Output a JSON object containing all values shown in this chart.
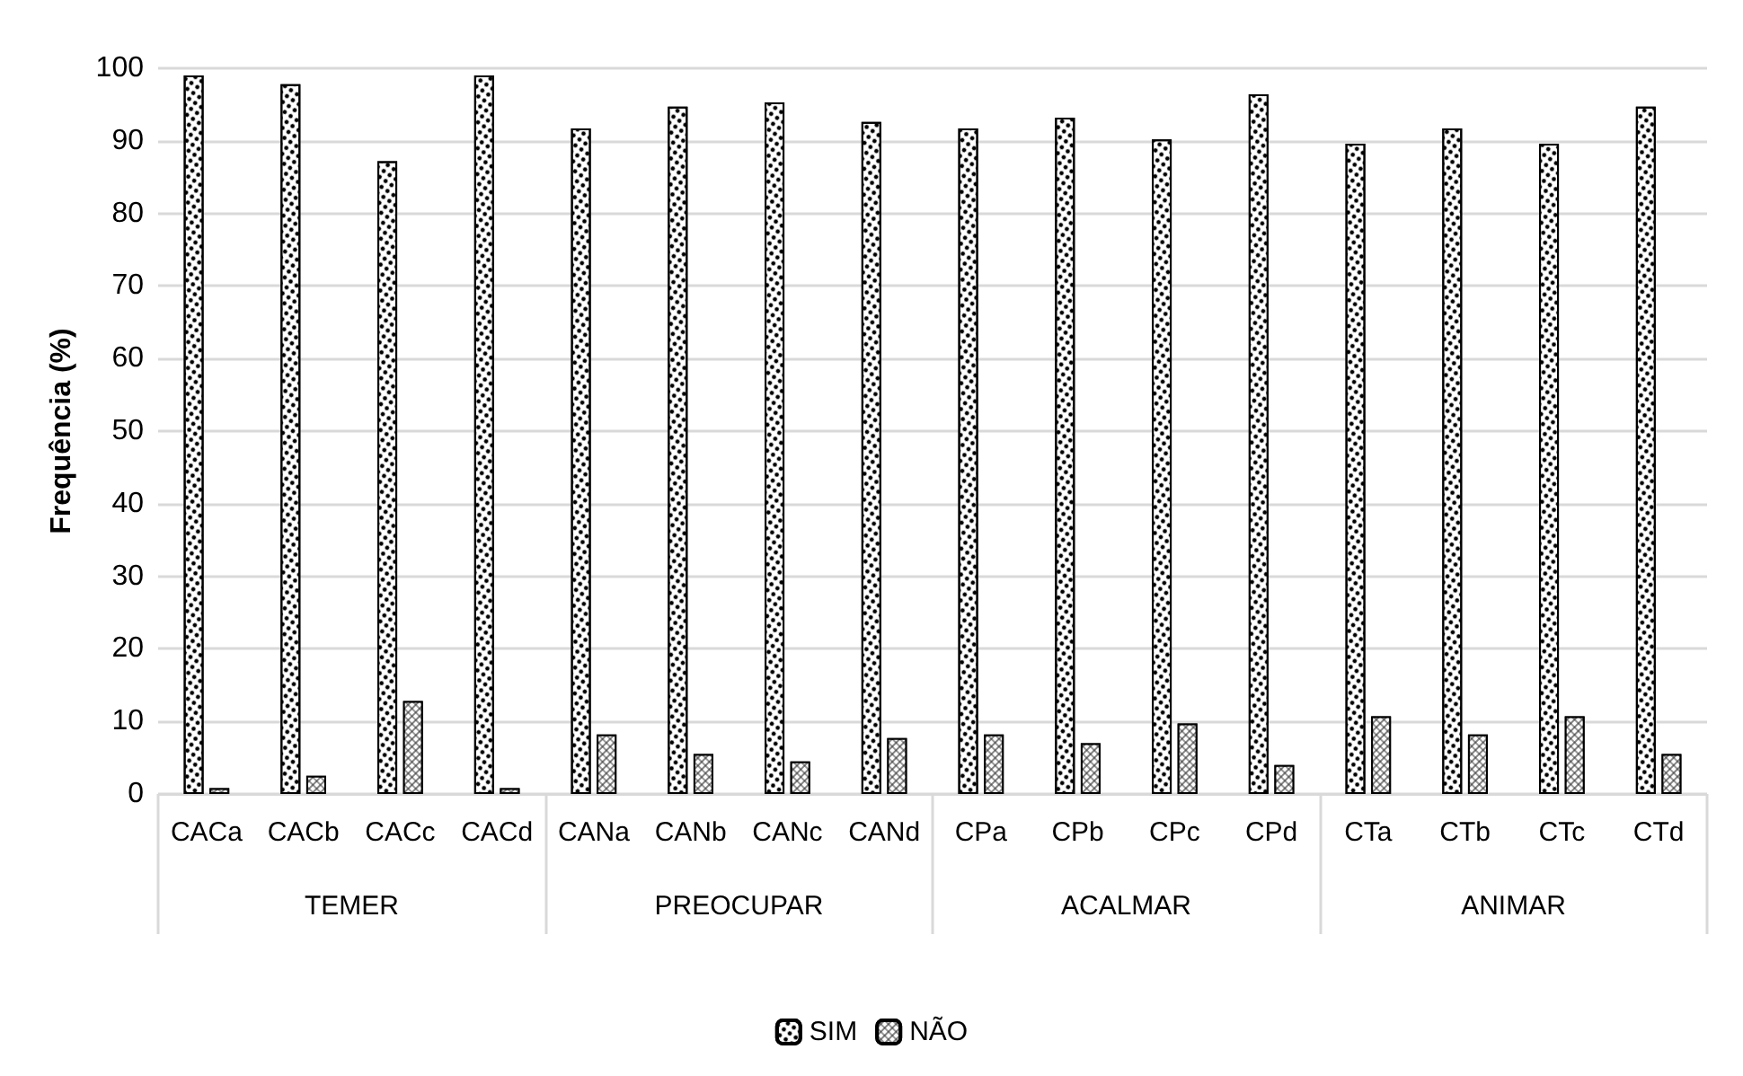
{
  "chart_data": {
    "type": "bar",
    "ylabel": "Frequência (%)",
    "categories": [
      "CACa",
      "CACb",
      "CACc",
      "CACd",
      "CANa",
      "CANb",
      "CANc",
      "CANd",
      "CPa",
      "CPb",
      "CPc",
      "CPd",
      "CTa",
      "CTb",
      "CTc",
      "CTd"
    ],
    "annotations": [
      "TEMER",
      "PREOCUPAR",
      "ACALMAR",
      "ANIMAR"
    ],
    "series": [
      {
        "name": "SIM",
        "color": "#ffffff",
        "values": [
          99.0,
          97.8,
          87.2,
          99.0,
          91.7,
          94.7,
          95.3,
          92.6,
          91.7,
          93.2,
          90.2,
          96.4,
          89.6,
          91.7,
          89.6,
          94.7
        ]
      },
      {
        "name": "NÃO",
        "color": "#333333",
        "values": [
          0.8,
          2.5,
          12.8,
          0.8,
          8.2,
          5.5,
          4.5,
          7.7,
          8.2,
          7.0,
          9.7,
          4.0,
          10.7,
          8.2,
          10.7,
          5.5
        ]
      }
    ],
    "ylim": [
      0,
      100
    ],
    "yticks": [
      0,
      10,
      20,
      30,
      40,
      50,
      60,
      70,
      80,
      90,
      100
    ],
    "grid": "y",
    "legend": "bottom"
  }
}
